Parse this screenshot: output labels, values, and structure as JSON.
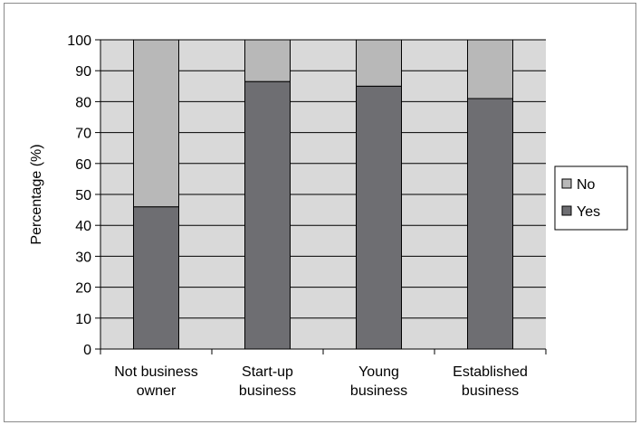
{
  "chart_data": {
    "type": "bar",
    "stacked": true,
    "categories": [
      "Not business owner",
      "Start-up business",
      "Young business",
      "Established business"
    ],
    "category_lines": [
      [
        "Not business",
        "owner"
      ],
      [
        "Start-up",
        "business"
      ],
      [
        "Young",
        "business"
      ],
      [
        "Established",
        "business"
      ]
    ],
    "series": [
      {
        "name": "Yes",
        "values": [
          46,
          86.5,
          85,
          81
        ],
        "color": "#6e6e72"
      },
      {
        "name": "No",
        "values": [
          54,
          13.5,
          15,
          19
        ],
        "color": "#b8b8b8"
      }
    ],
    "ylabel": "Percentage (%)",
    "xlabel": "",
    "ylim": [
      0,
      100
    ],
    "yticks": [
      0,
      10,
      20,
      30,
      40,
      50,
      60,
      70,
      80,
      90,
      100
    ],
    "grid": true,
    "legend_position": "right",
    "legend_order": [
      "No",
      "Yes"
    ],
    "plot_background": "#d9d9d9"
  }
}
